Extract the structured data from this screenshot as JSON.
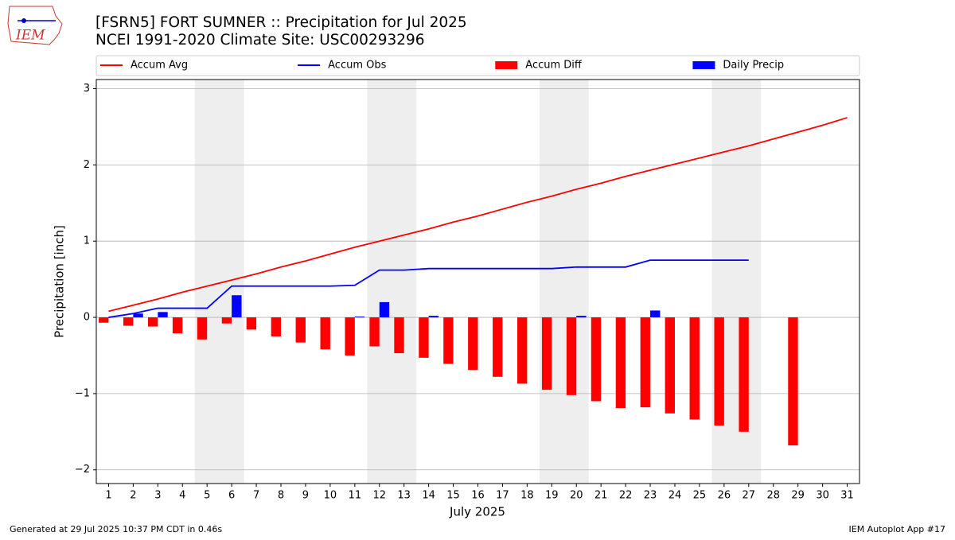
{
  "logo": "IEM",
  "footer": {
    "left": "Generated at 29 Jul 2025 10:37 PM CDT in 0.46s",
    "right": "IEM Autoplot App #17"
  },
  "chart_data": {
    "type": "combo",
    "title": "[FSRN5] FORT SUMNER :: Precipitation for Jul 2025",
    "subtitle": "NCEI 1991-2020 Climate Site: USC00293296",
    "xlabel": "July 2025",
    "ylabel": "Precipitation [inch]",
    "x": [
      1,
      2,
      3,
      4,
      5,
      6,
      7,
      8,
      9,
      10,
      11,
      12,
      13,
      14,
      15,
      16,
      17,
      18,
      19,
      20,
      21,
      22,
      23,
      24,
      25,
      26,
      27,
      28,
      29,
      30,
      31
    ],
    "xlim": [
      0.5,
      31.5
    ],
    "xticks": [
      1,
      2,
      3,
      4,
      5,
      6,
      7,
      8,
      9,
      10,
      11,
      12,
      13,
      14,
      15,
      16,
      17,
      18,
      19,
      20,
      21,
      22,
      23,
      24,
      25,
      26,
      27,
      28,
      29,
      30,
      31
    ],
    "ylim": [
      -2.18,
      3.12
    ],
    "yticks": [
      {
        "value": -2,
        "label": "−2"
      },
      {
        "value": -1,
        "label": "−1"
      },
      0,
      1,
      2,
      3
    ],
    "grid": true,
    "legend": "top",
    "shaded_spans": [
      [
        4.5,
        6.5
      ],
      [
        11.5,
        13.5
      ],
      [
        18.5,
        20.5
      ],
      [
        25.5,
        27.5
      ]
    ],
    "shade_color": "#eeeeee",
    "series": [
      {
        "name": "Accum Avg",
        "kind": "line",
        "color": "#ff0000",
        "values": [
          0.08,
          0.16,
          0.24,
          0.33,
          0.41,
          0.49,
          0.57,
          0.66,
          0.74,
          0.83,
          0.92,
          1.0,
          1.08,
          1.16,
          1.25,
          1.33,
          1.42,
          1.51,
          1.59,
          1.68,
          1.76,
          1.85,
          1.93,
          2.01,
          2.09,
          2.17,
          2.25,
          2.34,
          2.43,
          2.52,
          2.62
        ]
      },
      {
        "name": "Accum Obs",
        "kind": "line",
        "color": "#0000ff",
        "values": [
          0,
          0.05,
          0.12,
          0.12,
          0.12,
          0.41,
          0.41,
          0.41,
          0.41,
          0.41,
          0.42,
          0.62,
          0.62,
          0.64,
          0.64,
          0.64,
          0.64,
          0.64,
          0.64,
          0.66,
          0.66,
          0.66,
          0.75,
          0.75,
          0.75,
          0.75,
          0.75,
          null,
          null,
          null,
          null
        ]
      },
      {
        "name": "Accum Diff",
        "kind": "bar",
        "color": "#ff0000",
        "values": [
          -0.07,
          -0.11,
          -0.12,
          -0.21,
          -0.29,
          -0.08,
          -0.16,
          -0.25,
          -0.33,
          -0.42,
          -0.5,
          -0.38,
          -0.47,
          -0.53,
          -0.61,
          -0.69,
          -0.78,
          -0.87,
          -0.95,
          -1.02,
          -1.1,
          -1.19,
          -1.18,
          -1.26,
          -1.34,
          -1.42,
          -1.5,
          null,
          -1.68,
          null,
          null
        ]
      },
      {
        "name": "Daily Precip",
        "kind": "bar",
        "color": "#0000ff",
        "values": [
          0,
          0.05,
          0.07,
          0,
          0,
          0.29,
          0,
          0,
          0,
          0,
          0.01,
          0.2,
          0,
          0.02,
          0,
          0,
          0,
          0,
          0,
          0.02,
          0,
          0,
          0.09,
          0,
          0,
          0,
          0,
          null,
          null,
          null,
          null
        ]
      }
    ]
  }
}
